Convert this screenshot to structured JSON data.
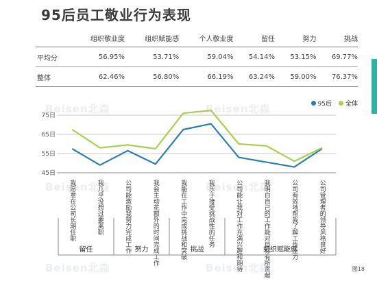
{
  "title": "95后员工敬业行为表现",
  "watermark": "Beisen北森",
  "colors": {
    "s95": "#2a7fb0",
    "all": "#a8d04e",
    "tab": "#2bb3a8"
  },
  "table": {
    "columns": [
      "",
      "组织敬业度",
      "组织赋能感",
      "个人敬业度",
      "留任",
      "努力",
      "挑战"
    ],
    "rows": [
      {
        "label": "平均分",
        "values": [
          "56.95%",
          "53.71%",
          "59.04%",
          "54.14%",
          "53.15%",
          "69.77%"
        ]
      },
      {
        "label": "整体",
        "values": [
          "62.46%",
          "56.80%",
          "66.19%",
          "63.24%",
          "59.00%",
          "76.37%"
        ]
      }
    ]
  },
  "figure_label": "图18",
  "chart_data": {
    "type": "line",
    "ylim": [
      45,
      75
    ],
    "yticks": [
      "45日",
      "55日",
      "65日",
      "75日"
    ],
    "ytick_values": [
      45,
      55,
      65,
      75
    ],
    "categories": [
      "我愿意在公司长期任职",
      "我几乎没想过要离职",
      "公司能激励我努力完成工作",
      "我会主动花额外的时间完成工作",
      "我能在工作中完成挑战和突破",
      "我乐于接受挑战性的任务",
      "公司能让我对工作充满兴趣和期待",
      "我明白自己的工作能对目标有所贡献",
      "公司有效地帮我了解工作压力",
      "公司管理者的领导风格良好"
    ],
    "series": [
      {
        "name": "95后",
        "color": "#2a7fb0",
        "values": [
          57.5,
          49.0,
          56.5,
          49.5,
          67.5,
          70.5,
          53.0,
          50.5,
          48.0,
          57.5
        ]
      },
      {
        "name": "全体",
        "color": "#a8d04e",
        "values": [
          67.5,
          58.0,
          59.5,
          57.5,
          76.0,
          77.5,
          60.0,
          59.0,
          51.0,
          58.0
        ]
      }
    ],
    "groups": [
      {
        "name": "留任",
        "span": [
          0,
          2
        ]
      },
      {
        "name": "努力",
        "span": [
          2,
          4
        ]
      },
      {
        "name": "挑战",
        "span": [
          4,
          6
        ]
      },
      {
        "name": "组织赋能感",
        "span": [
          6,
          10
        ]
      }
    ]
  }
}
